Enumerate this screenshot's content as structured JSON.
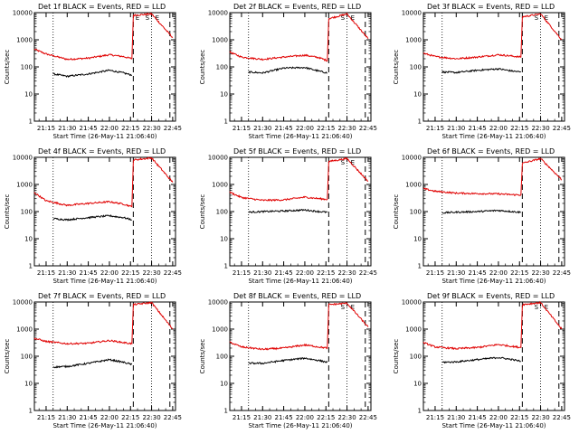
{
  "colors": {
    "events": "#000000",
    "lld": "#e00000",
    "background": "#ffffff"
  },
  "chart_data": [
    {
      "type": "line",
      "title": "Det 1f BLACK = Events, RED = LLD",
      "xlabel": "Start Time (26-May-11 21:06:40)",
      "ylabel": "Counts/sec",
      "yscale": "log",
      "ylim": [
        1,
        10000
      ],
      "yticks": [
        "1",
        "10",
        "100",
        "1000",
        "10000"
      ],
      "xlim": [
        "21:06:40",
        "22:47:00"
      ],
      "xticks": [
        "21:15",
        "21:30",
        "21:45",
        "22:00",
        "22:15",
        "22:30",
        "22:45"
      ],
      "dotted_markers": [
        "21:20",
        "22:30"
      ],
      "dashed_markers": [
        "22:17",
        "22:43"
      ],
      "annotations": [
        "E",
        "S",
        "E"
      ],
      "series": [
        {
          "color": "red",
          "points": [
            [
              "21:06:40",
              450
            ],
            [
              "21:15",
              300
            ],
            [
              "21:30",
              190
            ],
            [
              "21:45",
              210
            ],
            [
              "22:00",
              280
            ],
            [
              "22:10",
              240
            ],
            [
              "22:16",
              200
            ],
            [
              "22:17",
              8000
            ],
            [
              "22:30",
              9000
            ],
            [
              "22:45",
              1200
            ]
          ]
        },
        {
          "color": "black",
          "points": [
            [
              "21:20",
              55
            ],
            [
              "21:30",
              45
            ],
            [
              "21:45",
              55
            ],
            [
              "22:00",
              75
            ],
            [
              "22:10",
              60
            ],
            [
              "22:16",
              50
            ]
          ]
        }
      ]
    },
    {
      "type": "line",
      "title": "Det 2f BLACK = Events, RED = LLD",
      "xlabel": "Start Time (26-May-11 21:06:40)",
      "ylabel": "Counts/sec",
      "yscale": "log",
      "ylim": [
        1,
        10000
      ],
      "yticks": [
        "1",
        "10",
        "100",
        "1000",
        "10000"
      ],
      "xlim": [
        "21:06:40",
        "22:47:00"
      ],
      "xticks": [
        "21:15",
        "21:30",
        "21:45",
        "22:00",
        "22:15",
        "22:30",
        "22:45"
      ],
      "dotted_markers": [
        "21:20",
        "22:30"
      ],
      "dashed_markers": [
        "22:17",
        "22:43"
      ],
      "annotations": [
        "S",
        "E"
      ],
      "series": [
        {
          "color": "red",
          "points": [
            [
              "21:06:40",
              350
            ],
            [
              "21:15",
              230
            ],
            [
              "21:30",
              190
            ],
            [
              "21:45",
              230
            ],
            [
              "22:00",
              270
            ],
            [
              "22:10",
              220
            ],
            [
              "22:16",
              170
            ],
            [
              "22:17",
              6000
            ],
            [
              "22:30",
              9000
            ],
            [
              "22:45",
              1100
            ]
          ]
        },
        {
          "color": "black",
          "points": [
            [
              "21:20",
              65
            ],
            [
              "21:30",
              60
            ],
            [
              "21:45",
              90
            ],
            [
              "22:00",
              95
            ],
            [
              "22:10",
              70
            ],
            [
              "22:16",
              60
            ]
          ]
        }
      ]
    },
    {
      "type": "line",
      "title": "Det 3f BLACK = Events, RED = LLD",
      "xlabel": "Start Time (26-May-11 21:06:40)",
      "ylabel": "Counts/sec",
      "yscale": "log",
      "ylim": [
        1,
        10000
      ],
      "yticks": [
        "1",
        "10",
        "100",
        "1000",
        "10000"
      ],
      "xlim": [
        "21:06:40",
        "22:47:00"
      ],
      "xticks": [
        "21:15",
        "21:30",
        "21:45",
        "22:00",
        "22:15",
        "22:30",
        "22:45"
      ],
      "dotted_markers": [
        "21:20",
        "22:30"
      ],
      "dashed_markers": [
        "22:17",
        "22:43"
      ],
      "annotations": [
        "S",
        "E"
      ],
      "series": [
        {
          "color": "red",
          "points": [
            [
              "21:06:40",
              320
            ],
            [
              "21:15",
              240
            ],
            [
              "21:30",
              200
            ],
            [
              "21:45",
              230
            ],
            [
              "22:00",
              280
            ],
            [
              "22:10",
              250
            ],
            [
              "22:16",
              230
            ],
            [
              "22:17",
              7000
            ],
            [
              "22:30",
              9000
            ],
            [
              "22:45",
              1000
            ]
          ]
        },
        {
          "color": "black",
          "points": [
            [
              "21:20",
              65
            ],
            [
              "21:30",
              62
            ],
            [
              "21:45",
              75
            ],
            [
              "22:00",
              85
            ],
            [
              "22:10",
              70
            ],
            [
              "22:16",
              65
            ]
          ]
        }
      ]
    },
    {
      "type": "line",
      "title": "Det 4f BLACK = Events, RED = LLD",
      "xlabel": "Start Time (26-May-11 21:06:40)",
      "ylabel": "Counts/sec",
      "yscale": "log",
      "ylim": [
        1,
        10000
      ],
      "yticks": [
        "1",
        "10",
        "100",
        "1000",
        "10000"
      ],
      "xlim": [
        "21:06:40",
        "22:47:00"
      ],
      "xticks": [
        "21:15",
        "21:30",
        "21:45",
        "22:00",
        "22:15",
        "22:30",
        "22:45"
      ],
      "dotted_markers": [
        "21:20",
        "22:30"
      ],
      "dashed_markers": [
        "22:17",
        "22:43"
      ],
      "annotations": [],
      "series": [
        {
          "color": "red",
          "points": [
            [
              "21:06:40",
              500
            ],
            [
              "21:15",
              250
            ],
            [
              "21:30",
              170
            ],
            [
              "21:45",
              200
            ],
            [
              "22:00",
              230
            ],
            [
              "22:10",
              190
            ],
            [
              "22:16",
              150
            ],
            [
              "22:17",
              8000
            ],
            [
              "22:30",
              9500
            ],
            [
              "22:45",
              1200
            ]
          ]
        },
        {
          "color": "black",
          "points": [
            [
              "21:20",
              55
            ],
            [
              "21:30",
              50
            ],
            [
              "21:45",
              60
            ],
            [
              "22:00",
              70
            ],
            [
              "22:10",
              60
            ],
            [
              "22:16",
              50
            ]
          ]
        }
      ]
    },
    {
      "type": "line",
      "title": "Det 5f BLACK = Events, RED = LLD",
      "xlabel": "Start Time (26-May-11 21:06:40)",
      "ylabel": "Counts/sec",
      "yscale": "log",
      "ylim": [
        1,
        10000
      ],
      "yticks": [
        "1",
        "10",
        "100",
        "1000",
        "10000"
      ],
      "xlim": [
        "21:06:40",
        "22:47:00"
      ],
      "xticks": [
        "21:15",
        "21:30",
        "21:45",
        "22:00",
        "22:15",
        "22:30",
        "22:45"
      ],
      "dotted_markers": [
        "21:20",
        "22:30"
      ],
      "dashed_markers": [
        "22:17",
        "22:43"
      ],
      "annotations": [
        "S",
        "E"
      ],
      "series": [
        {
          "color": "red",
          "points": [
            [
              "21:06:40",
              520
            ],
            [
              "21:15",
              330
            ],
            [
              "21:30",
              260
            ],
            [
              "21:45",
              270
            ],
            [
              "22:00",
              340
            ],
            [
              "22:10",
              300
            ],
            [
              "22:16",
              280
            ],
            [
              "22:17",
              7000
            ],
            [
              "22:30",
              9000
            ],
            [
              "22:45",
              1300
            ]
          ]
        },
        {
          "color": "black",
          "points": [
            [
              "21:20",
              95
            ],
            [
              "21:30",
              100
            ],
            [
              "21:45",
              105
            ],
            [
              "22:00",
              115
            ],
            [
              "22:10",
              100
            ],
            [
              "22:16",
              95
            ]
          ]
        }
      ]
    },
    {
      "type": "line",
      "title": "Det 6f BLACK = Events, RED = LLD",
      "xlabel": "Start Time (26-May-11 21:06:40)",
      "ylabel": "Counts/sec",
      "yscale": "log",
      "ylim": [
        1,
        10000
      ],
      "yticks": [
        "1",
        "10",
        "100",
        "1000",
        "10000"
      ],
      "xlim": [
        "21:06:40",
        "22:47:00"
      ],
      "xticks": [
        "21:15",
        "21:30",
        "21:45",
        "22:00",
        "22:15",
        "22:30",
        "22:45"
      ],
      "dotted_markers": [
        "21:20",
        "22:30"
      ],
      "dashed_markers": [
        "22:17",
        "22:43"
      ],
      "annotations": [],
      "series": [
        {
          "color": "red",
          "points": [
            [
              "21:06:40",
              700
            ],
            [
              "21:15",
              560
            ],
            [
              "21:30",
              480
            ],
            [
              "21:45",
              460
            ],
            [
              "22:00",
              450
            ],
            [
              "22:10",
              420
            ],
            [
              "22:16",
              410
            ],
            [
              "22:17",
              6000
            ],
            [
              "22:30",
              9000
            ],
            [
              "22:45",
              1500
            ]
          ]
        },
        {
          "color": "black",
          "points": [
            [
              "21:20",
              90
            ],
            [
              "21:30",
              95
            ],
            [
              "21:45",
              100
            ],
            [
              "22:00",
              110
            ],
            [
              "22:10",
              100
            ],
            [
              "22:16",
              95
            ]
          ]
        }
      ]
    },
    {
      "type": "line",
      "title": "Det 7f BLACK = Events, RED = LLD",
      "xlabel": "Start Time (26-May-11 21:06:40)",
      "ylabel": "Counts/sec",
      "yscale": "log",
      "ylim": [
        1,
        10000
      ],
      "yticks": [
        "1",
        "10",
        "100",
        "1000",
        "10000"
      ],
      "xlim": [
        "21:06:40",
        "22:47:00"
      ],
      "xticks": [
        "21:15",
        "21:30",
        "21:45",
        "22:00",
        "22:15",
        "22:30",
        "22:45"
      ],
      "dotted_markers": [
        "21:20",
        "22:30"
      ],
      "dashed_markers": [
        "22:17",
        "22:43"
      ],
      "annotations": [],
      "series": [
        {
          "color": "red",
          "points": [
            [
              "21:06:40",
              460
            ],
            [
              "21:15",
              350
            ],
            [
              "21:30",
              290
            ],
            [
              "21:45",
              300
            ],
            [
              "22:00",
              380
            ],
            [
              "22:10",
              320
            ],
            [
              "22:16",
              290
            ],
            [
              "22:17",
              8000
            ],
            [
              "22:30",
              9500
            ],
            [
              "22:45",
              1000
            ]
          ]
        },
        {
          "color": "black",
          "points": [
            [
              "21:20",
              40
            ],
            [
              "21:30",
              42
            ],
            [
              "21:45",
              55
            ],
            [
              "22:00",
              75
            ],
            [
              "22:10",
              60
            ],
            [
              "22:16",
              50
            ]
          ]
        }
      ]
    },
    {
      "type": "line",
      "title": "Det 8f BLACK = Events, RED = LLD",
      "xlabel": "Start Time (26-May-11 21:06:40)",
      "ylabel": "Counts/sec",
      "yscale": "log",
      "ylim": [
        1,
        10000
      ],
      "yticks": [
        "1",
        "10",
        "100",
        "1000",
        "10000"
      ],
      "xlim": [
        "21:06:40",
        "22:47:00"
      ],
      "xticks": [
        "21:15",
        "21:30",
        "21:45",
        "22:00",
        "22:15",
        "22:30",
        "22:45"
      ],
      "dotted_markers": [
        "21:20",
        "22:30"
      ],
      "dashed_markers": [
        "22:17",
        "22:43"
      ],
      "annotations": [
        "S",
        "E"
      ],
      "series": [
        {
          "color": "red",
          "points": [
            [
              "21:06:40",
              330
            ],
            [
              "21:15",
              220
            ],
            [
              "21:30",
              180
            ],
            [
              "21:45",
              200
            ],
            [
              "22:00",
              260
            ],
            [
              "22:10",
              220
            ],
            [
              "22:16",
              200
            ],
            [
              "22:17",
              8000
            ],
            [
              "22:30",
              9000
            ],
            [
              "22:45",
              1200
            ]
          ]
        },
        {
          "color": "black",
          "points": [
            [
              "21:20",
              55
            ],
            [
              "21:30",
              55
            ],
            [
              "21:45",
              70
            ],
            [
              "22:00",
              85
            ],
            [
              "22:10",
              70
            ],
            [
              "22:16",
              60
            ]
          ]
        }
      ]
    },
    {
      "type": "line",
      "title": "Det 9f BLACK = Events, RED = LLD",
      "xlabel": "Start Time (26-May-11 21:06:40)",
      "ylabel": "Counts/sec",
      "yscale": "log",
      "ylim": [
        1,
        10000
      ],
      "yticks": [
        "1",
        "10",
        "100",
        "1000",
        "10000"
      ],
      "xlim": [
        "21:06:40",
        "22:47:00"
      ],
      "xticks": [
        "21:15",
        "21:30",
        "21:45",
        "22:00",
        "22:15",
        "22:30",
        "22:45"
      ],
      "dotted_markers": [
        "21:20",
        "22:30"
      ],
      "dashed_markers": [
        "22:17",
        "22:43"
      ],
      "annotations": [
        "S",
        "E"
      ],
      "series": [
        {
          "color": "red",
          "points": [
            [
              "21:06:40",
              320
            ],
            [
              "21:15",
              220
            ],
            [
              "21:30",
              190
            ],
            [
              "21:45",
              210
            ],
            [
              "22:00",
              270
            ],
            [
              "22:10",
              230
            ],
            [
              "22:16",
              210
            ],
            [
              "22:17",
              8000
            ],
            [
              "22:30",
              9500
            ],
            [
              "22:45",
              1000
            ]
          ]
        },
        {
          "color": "black",
          "points": [
            [
              "21:20",
              60
            ],
            [
              "21:30",
              62
            ],
            [
              "21:45",
              75
            ],
            [
              "22:00",
              90
            ],
            [
              "22:10",
              75
            ],
            [
              "22:16",
              65
            ]
          ]
        }
      ]
    }
  ]
}
